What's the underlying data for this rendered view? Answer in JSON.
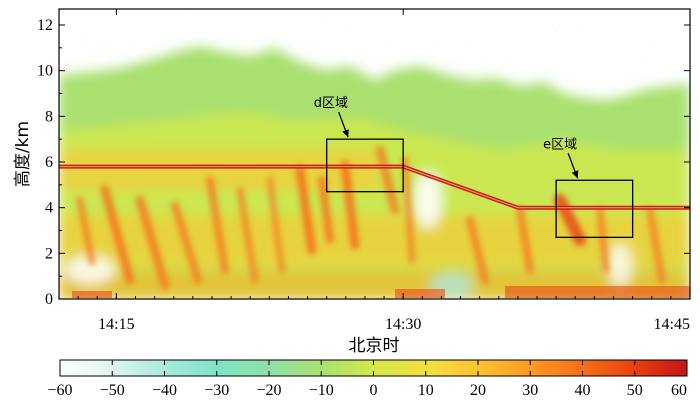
{
  "chart_data": {
    "type": "heatmap",
    "title": "",
    "xlabel": "北京时",
    "ylabel": "高度/km",
    "x_ticks": [
      "14:15",
      "14:30",
      "14:45"
    ],
    "y_ticks": [
      "0",
      "2",
      "4",
      "6",
      "8",
      "10",
      "12"
    ],
    "xlim": [
      "14:12",
      "14:45"
    ],
    "ylim": [
      0,
      12.7
    ],
    "colorbar": {
      "min": -60,
      "max": 60,
      "ticks": [
        "−60",
        "−50",
        "−40",
        "−30",
        "−20",
        "−10",
        "0",
        "10",
        "20",
        "30",
        "40",
        "50",
        "60"
      ],
      "colors": [
        "#ffffff",
        "#dff5f0",
        "#a8eadc",
        "#7fe3c8",
        "#8fe0a8",
        "#a9e070",
        "#d2e84a",
        "#f2e040",
        "#ffc233",
        "#ff9a22",
        "#f5701a",
        "#e84010",
        "#c81414"
      ]
    },
    "annotations": [
      {
        "label": "d区域",
        "x_range": [
          "14:26",
          "14:30"
        ],
        "y_range": [
          4.7,
          7.0
        ]
      },
      {
        "label": "e区域",
        "x_range": [
          "14:38",
          "14:42"
        ],
        "y_range": [
          2.7,
          5.2
        ]
      }
    ],
    "aircraft_track": [
      {
        "time": "14:12",
        "height": 5.8
      },
      {
        "time": "14:30",
        "height": 5.8
      },
      {
        "time": "14:36",
        "height": 4.0
      },
      {
        "time": "14:45",
        "height": 4.0
      }
    ]
  }
}
